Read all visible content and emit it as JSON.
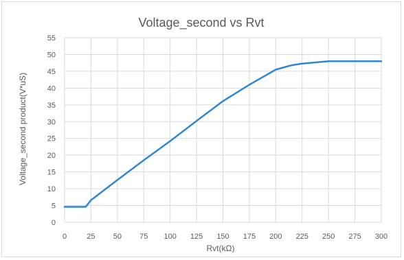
{
  "chart_data": {
    "type": "line",
    "title": "Voltage_second vs Rvt",
    "xlabel": "Rvt(kΩ)",
    "ylabel": "Voltage_second  product(V*uS)",
    "xlim": [
      0,
      300
    ],
    "ylim": [
      0,
      55
    ],
    "xticks": [
      0,
      25,
      50,
      75,
      100,
      125,
      150,
      175,
      200,
      225,
      250,
      275,
      300
    ],
    "yticks": [
      0,
      5,
      10,
      15,
      20,
      25,
      30,
      35,
      40,
      45,
      50,
      55
    ],
    "grid": true,
    "legend": "none",
    "series": [
      {
        "color": "#2e86d4",
        "x": [
          0,
          20,
          25,
          50,
          75,
          100,
          125,
          150,
          175,
          200,
          215,
          225,
          250,
          275,
          300
        ],
        "y": [
          4.6,
          4.6,
          6.6,
          12.6,
          18.5,
          24.2,
          30.2,
          36.1,
          41,
          45.5,
          46.8,
          47.3,
          48,
          48,
          48
        ]
      }
    ]
  }
}
